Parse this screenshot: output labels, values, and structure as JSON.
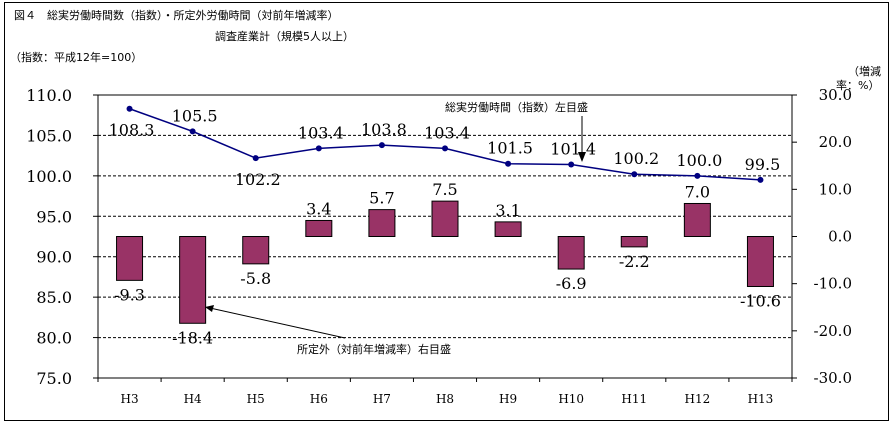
{
  "title": "図４　総実労働時間数（指数）・所定外労働時間（対前年増減率）",
  "subtitle": "調査産業計（規模5人以上）",
  "left_unit": "（指数：平成12年=100）",
  "right_unit_line1": "（増減",
  "right_unit_line2": "率：%）",
  "annotations": {
    "line_note": "総実労働時間（指数）左目盛",
    "bar_note": "所定外（対前年増減率）右目盛"
  },
  "colors": {
    "bar": "#993366",
    "line": "#000080",
    "grid": "#000000"
  },
  "chart_data": {
    "type": "bar",
    "categories": [
      "H3",
      "H4",
      "H5",
      "H6",
      "H7",
      "H8",
      "H9",
      "H10",
      "H11",
      "H12",
      "H13"
    ],
    "series": [
      {
        "type": "line",
        "axis": "left",
        "values": [
          108.3,
          105.5,
          102.2,
          103.4,
          103.8,
          103.4,
          101.5,
          101.4,
          100.2,
          100.0,
          99.5
        ],
        "labels": [
          "108.3",
          "105.5",
          "102.2",
          "103.4",
          "103.8",
          "103.4",
          "101.5",
          "101.4",
          "100.2",
          "100.0",
          "99.5"
        ]
      },
      {
        "type": "bar",
        "axis": "right",
        "values": [
          -9.3,
          -18.4,
          -5.8,
          3.4,
          5.7,
          7.5,
          3.1,
          -6.9,
          -2.2,
          7.0,
          -10.6
        ],
        "labels": [
          "-9.3",
          "-18.4",
          "-5.8",
          "3.4",
          "5.7",
          "7.5",
          "3.1",
          "-6.9",
          "-2.2",
          "7.0",
          "-10.6"
        ]
      }
    ],
    "left_axis": {
      "ylim": [
        75,
        110
      ],
      "ticks": [
        "110.0",
        "105.0",
        "100.0",
        "95.0",
        "90.0",
        "85.0",
        "80.0",
        "75.0"
      ]
    },
    "right_axis": {
      "ylim": [
        -30,
        30
      ],
      "ticks": [
        "30.0",
        "20.0",
        "10.0",
        "0.0",
        "-10.0",
        "-20.0",
        "-30.0"
      ]
    },
    "grid": true,
    "legend": "none"
  }
}
